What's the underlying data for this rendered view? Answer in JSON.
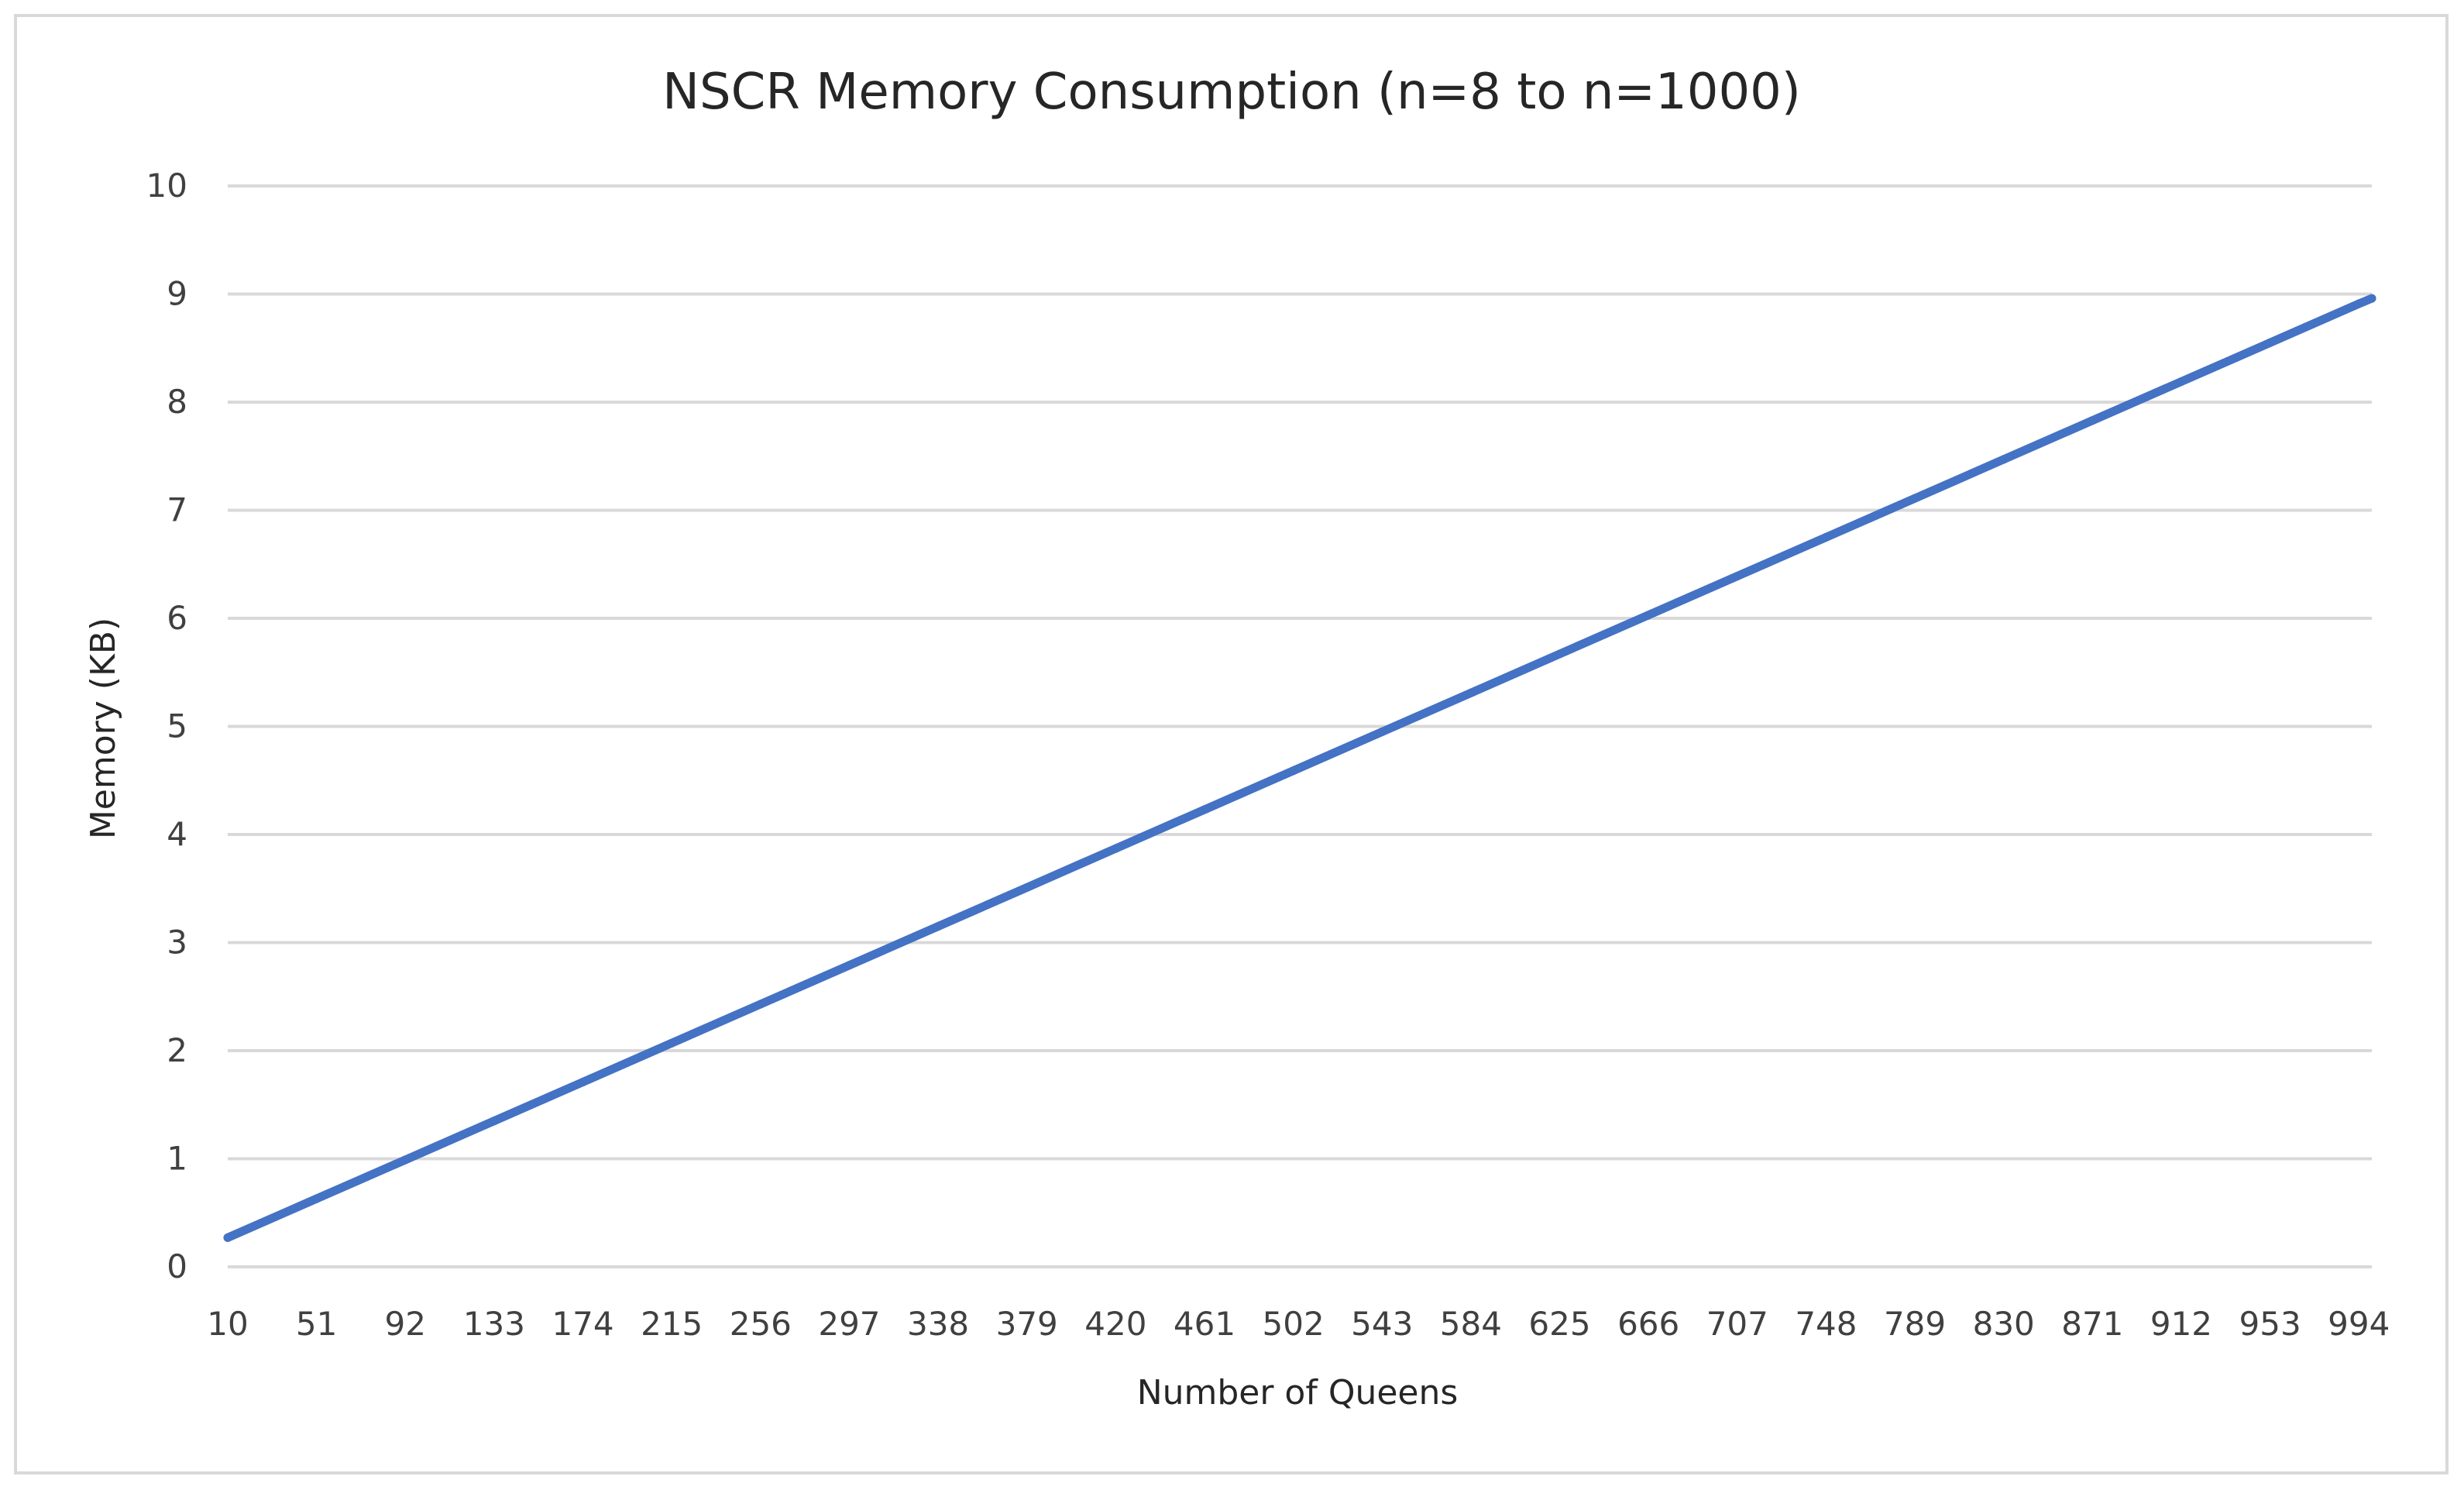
{
  "chart_data": {
    "type": "line",
    "title": "NSCR Memory Consumption (n=8 to n=1000)",
    "xlabel": "Number of Queens",
    "ylabel": "Memory (KB)",
    "x_tick_labels": [
      "10",
      "51",
      "92",
      "133",
      "174",
      "215",
      "256",
      "297",
      "338",
      "379",
      "420",
      "461",
      "502",
      "543",
      "584",
      "625",
      "666",
      "707",
      "748",
      "789",
      "830",
      "871",
      "912",
      "953",
      "994"
    ],
    "y_tick_labels": [
      "0",
      "1",
      "2",
      "3",
      "4",
      "5",
      "6",
      "7",
      "8",
      "9",
      "10"
    ],
    "xlim": [
      10,
      1000
    ],
    "ylim": [
      0,
      10
    ],
    "grid": true,
    "legend": "none",
    "series": [
      {
        "color": "#4472c4",
        "x": [
          10,
          51,
          92,
          133,
          174,
          215,
          256,
          297,
          338,
          379,
          420,
          461,
          502,
          543,
          584,
          625,
          666,
          707,
          748,
          789,
          830,
          871,
          912,
          953,
          994,
          1000
        ],
        "y": [
          0.27,
          0.63,
          0.99,
          1.35,
          1.71,
          2.07,
          2.43,
          2.79,
          3.15,
          3.51,
          3.87,
          4.23,
          4.59,
          4.95,
          5.31,
          5.67,
          6.03,
          6.39,
          6.75,
          7.11,
          7.47,
          7.83,
          8.19,
          8.55,
          8.91,
          8.96
        ]
      }
    ]
  }
}
